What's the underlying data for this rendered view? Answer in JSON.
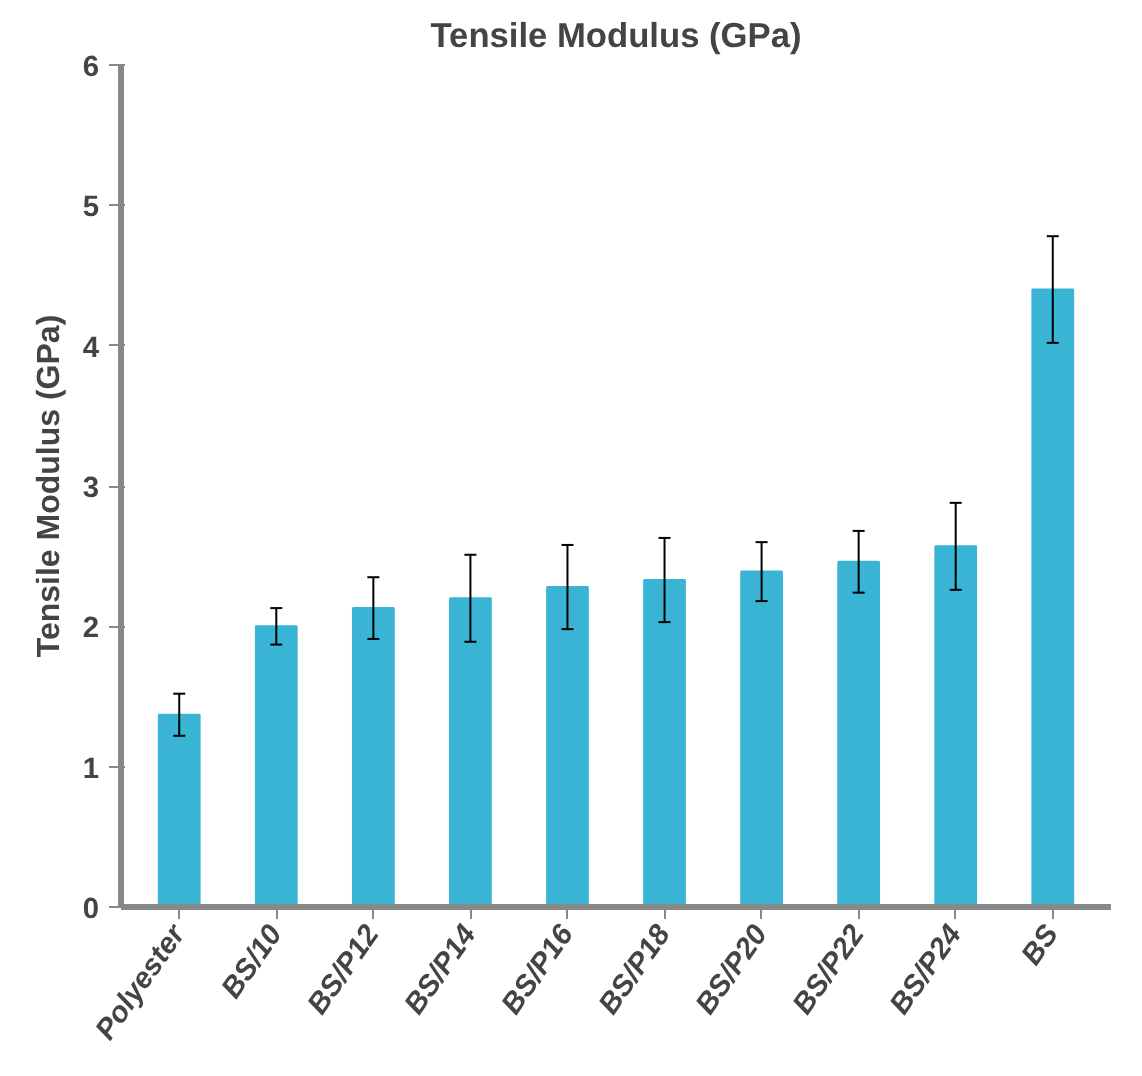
{
  "chart_data": {
    "type": "bar",
    "title": "Tensile Modulus (GPa)",
    "ylabel": "Tensile Modulus (GPa)",
    "categories": [
      "Polyester",
      "BS/10",
      "BS/P12",
      "BS/P14",
      "BS/P16",
      "BS/P18",
      "BS/P20",
      "BS/P22",
      "BS/P24",
      "BS"
    ],
    "values": [
      1.37,
      2.0,
      2.13,
      2.2,
      2.28,
      2.33,
      2.39,
      2.46,
      2.57,
      4.4
    ],
    "errors": [
      0.15,
      0.13,
      0.22,
      0.31,
      0.3,
      0.3,
      0.21,
      0.22,
      0.31,
      0.38
    ],
    "color": "#3ab4d4",
    "ylim": [
      0,
      6
    ],
    "yticks": [
      0,
      1,
      2,
      3,
      4,
      5,
      6
    ],
    "grid": false
  }
}
